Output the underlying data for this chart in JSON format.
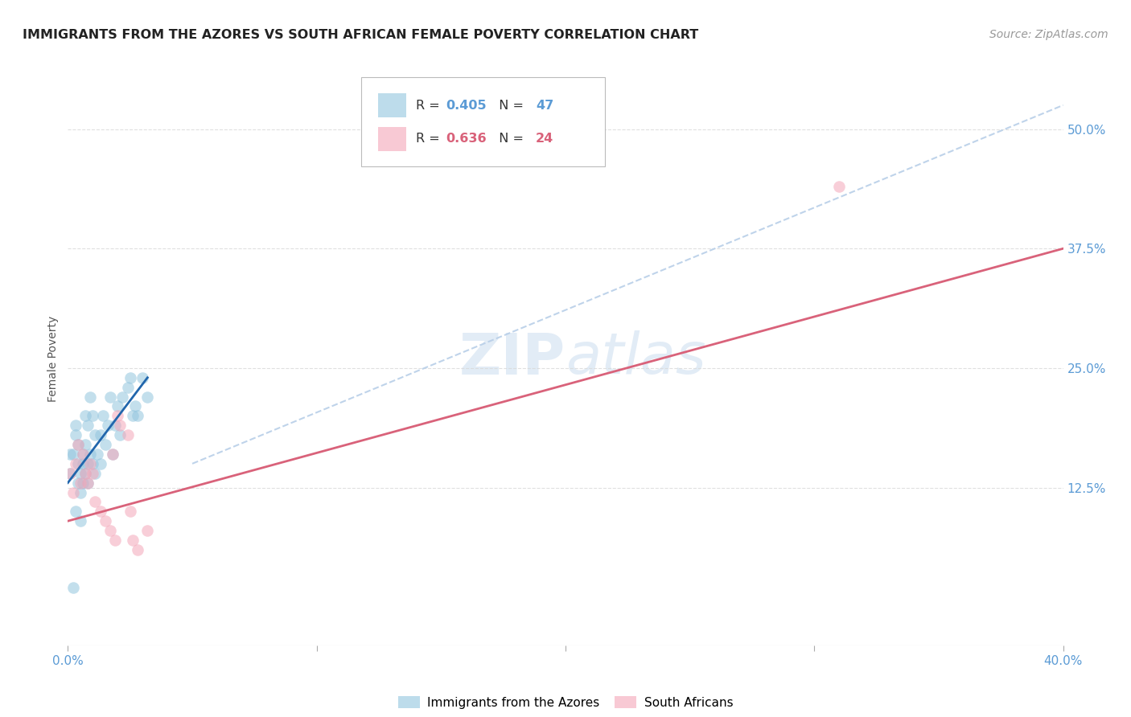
{
  "title": "IMMIGRANTS FROM THE AZORES VS SOUTH AFRICAN FEMALE POVERTY CORRELATION CHART",
  "source": "Source: ZipAtlas.com",
  "ylabel": "Female Poverty",
  "ytick_labels": [
    "12.5%",
    "25.0%",
    "37.5%",
    "50.0%"
  ],
  "ytick_values": [
    0.125,
    0.25,
    0.375,
    0.5
  ],
  "xlim": [
    0.0,
    0.4
  ],
  "ylim": [
    -0.04,
    0.56
  ],
  "legend1_r": "0.405",
  "legend1_n": "47",
  "legend2_r": "0.636",
  "legend2_n": "24",
  "blue_color": "#92c5de",
  "pink_color": "#f4a6b8",
  "blue_line_color": "#2166ac",
  "pink_line_color": "#d9627a",
  "dashed_line_color": "#b8cfe8",
  "blue_points_x": [
    0.001,
    0.002,
    0.002,
    0.003,
    0.003,
    0.004,
    0.004,
    0.004,
    0.005,
    0.005,
    0.005,
    0.006,
    0.006,
    0.006,
    0.007,
    0.007,
    0.007,
    0.008,
    0.008,
    0.008,
    0.009,
    0.009,
    0.01,
    0.01,
    0.011,
    0.011,
    0.012,
    0.013,
    0.013,
    0.014,
    0.015,
    0.016,
    0.017,
    0.018,
    0.019,
    0.02,
    0.021,
    0.022,
    0.024,
    0.025,
    0.026,
    0.027,
    0.028,
    0.03,
    0.032,
    0.001,
    0.003
  ],
  "blue_points_y": [
    0.14,
    0.16,
    0.02,
    0.18,
    0.1,
    0.13,
    0.15,
    0.17,
    0.12,
    0.14,
    0.09,
    0.15,
    0.13,
    0.16,
    0.14,
    0.17,
    0.2,
    0.15,
    0.19,
    0.13,
    0.16,
    0.22,
    0.15,
    0.2,
    0.18,
    0.14,
    0.16,
    0.18,
    0.15,
    0.2,
    0.17,
    0.19,
    0.22,
    0.16,
    0.19,
    0.21,
    0.18,
    0.22,
    0.23,
    0.24,
    0.2,
    0.21,
    0.2,
    0.24,
    0.22,
    0.16,
    0.19
  ],
  "pink_points_x": [
    0.001,
    0.002,
    0.003,
    0.004,
    0.005,
    0.006,
    0.007,
    0.008,
    0.009,
    0.01,
    0.011,
    0.013,
    0.015,
    0.017,
    0.019,
    0.021,
    0.024,
    0.026,
    0.028,
    0.032,
    0.02,
    0.018,
    0.31,
    0.025
  ],
  "pink_points_y": [
    0.14,
    0.12,
    0.15,
    0.17,
    0.13,
    0.16,
    0.14,
    0.13,
    0.15,
    0.14,
    0.11,
    0.1,
    0.09,
    0.08,
    0.07,
    0.19,
    0.18,
    0.07,
    0.06,
    0.08,
    0.2,
    0.16,
    0.44,
    0.1
  ],
  "blue_line_x0": 0.0,
  "blue_line_x1": 0.032,
  "blue_line_y0": 0.13,
  "blue_line_y1": 0.24,
  "pink_line_x0": 0.0,
  "pink_line_x1": 0.4,
  "pink_line_y0": 0.09,
  "pink_line_y1": 0.375,
  "dashed_line_x0": 0.05,
  "dashed_line_x1": 0.4,
  "dashed_line_y0": 0.15,
  "dashed_line_y1": 0.525
}
